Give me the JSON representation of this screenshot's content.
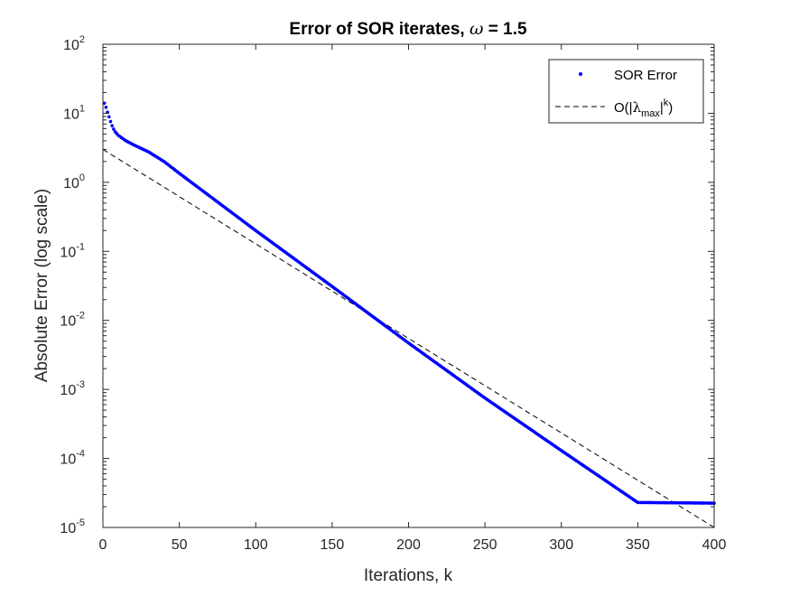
{
  "chart_data": {
    "type": "scatter",
    "title": {
      "prefix": "Error of SOR iterates, ",
      "symbol": "ω",
      "suffix": " = 1.5"
    },
    "xlabel": "Iterations, k",
    "ylabel": "Absolute Error (log scale)",
    "xlim": [
      0,
      400
    ],
    "ylim": [
      1e-05,
      100
    ],
    "yscale": "log",
    "grid": false,
    "legend_position": "top-right",
    "x_ticks": [
      0,
      50,
      100,
      150,
      200,
      250,
      300,
      350,
      400
    ],
    "y_ticks": [
      {
        "value": 1e-05,
        "base": "10",
        "exp": "-5"
      },
      {
        "value": 0.0001,
        "base": "10",
        "exp": "-4"
      },
      {
        "value": 0.001,
        "base": "10",
        "exp": "-3"
      },
      {
        "value": 0.01,
        "base": "10",
        "exp": "-2"
      },
      {
        "value": 0.1,
        "base": "10",
        "exp": "-1"
      },
      {
        "value": 1,
        "base": "10",
        "exp": "0"
      },
      {
        "value": 10,
        "base": "10",
        "exp": "1"
      },
      {
        "value": 100,
        "base": "10",
        "exp": "2"
      }
    ],
    "series": [
      {
        "name": "SOR Error",
        "style": "dots",
        "color": "#0000ff",
        "x_range": [
          1,
          400
        ],
        "sample_points": [
          {
            "x": 1,
            "y": 14
          },
          {
            "x": 2,
            "y": 12.2
          },
          {
            "x": 3,
            "y": 10.4
          },
          {
            "x": 4,
            "y": 8.9
          },
          {
            "x": 5,
            "y": 7.6
          },
          {
            "x": 6,
            "y": 6.6
          },
          {
            "x": 7,
            "y": 5.9
          },
          {
            "x": 8,
            "y": 5.4
          },
          {
            "x": 10,
            "y": 4.8
          },
          {
            "x": 15,
            "y": 4.0
          },
          {
            "x": 20,
            "y": 3.5
          },
          {
            "x": 30,
            "y": 2.75
          },
          {
            "x": 40,
            "y": 2.0
          },
          {
            "x": 50,
            "y": 1.35
          },
          {
            "x": 100,
            "y": 0.2
          },
          {
            "x": 150,
            "y": 0.031
          },
          {
            "x": 200,
            "y": 0.0047
          },
          {
            "x": 250,
            "y": 0.00075
          },
          {
            "x": 300,
            "y": 0.00013
          },
          {
            "x": 350,
            "y": 2.3e-05
          },
          {
            "x": 400,
            "y": 2.25e-05
          }
        ]
      },
      {
        "name_parts": {
          "prefix": "O(|",
          "symbol": "λ",
          "sub": "max",
          "mid": "|",
          "sup": "k",
          "suffix": ")"
        },
        "style": "dashed",
        "color": "#000000",
        "x": [
          0,
          400
        ],
        "y": [
          3.0,
          1e-05
        ]
      }
    ]
  }
}
